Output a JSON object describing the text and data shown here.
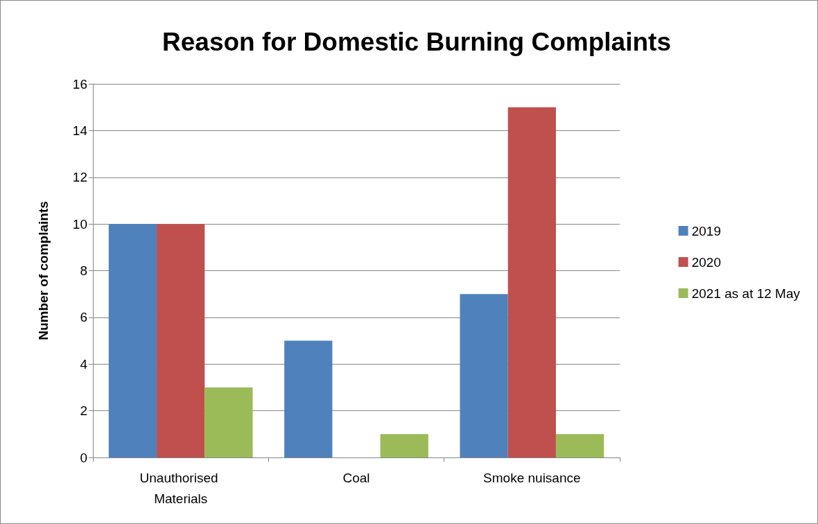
{
  "chart_data": {
    "type": "bar",
    "title": "Reason for Domestic Burning Complaints",
    "ylabel": "Number of complaints",
    "categories": [
      "Unauthorised Materials",
      "Coal",
      "Smoke nuisance"
    ],
    "series": [
      {
        "name": "2019",
        "color": "#4f81bd",
        "values": [
          10,
          5,
          7
        ]
      },
      {
        "name": "2020",
        "color": "#c0504d",
        "values": [
          10,
          0,
          15
        ]
      },
      {
        "name": "2021 as at 12 May",
        "color": "#9bbb59",
        "values": [
          3,
          1,
          1
        ]
      }
    ],
    "ylim": [
      0,
      16
    ],
    "yticks": [
      0,
      2,
      4,
      6,
      8,
      10,
      12,
      14,
      16
    ],
    "grid": "y",
    "legend": "right"
  }
}
